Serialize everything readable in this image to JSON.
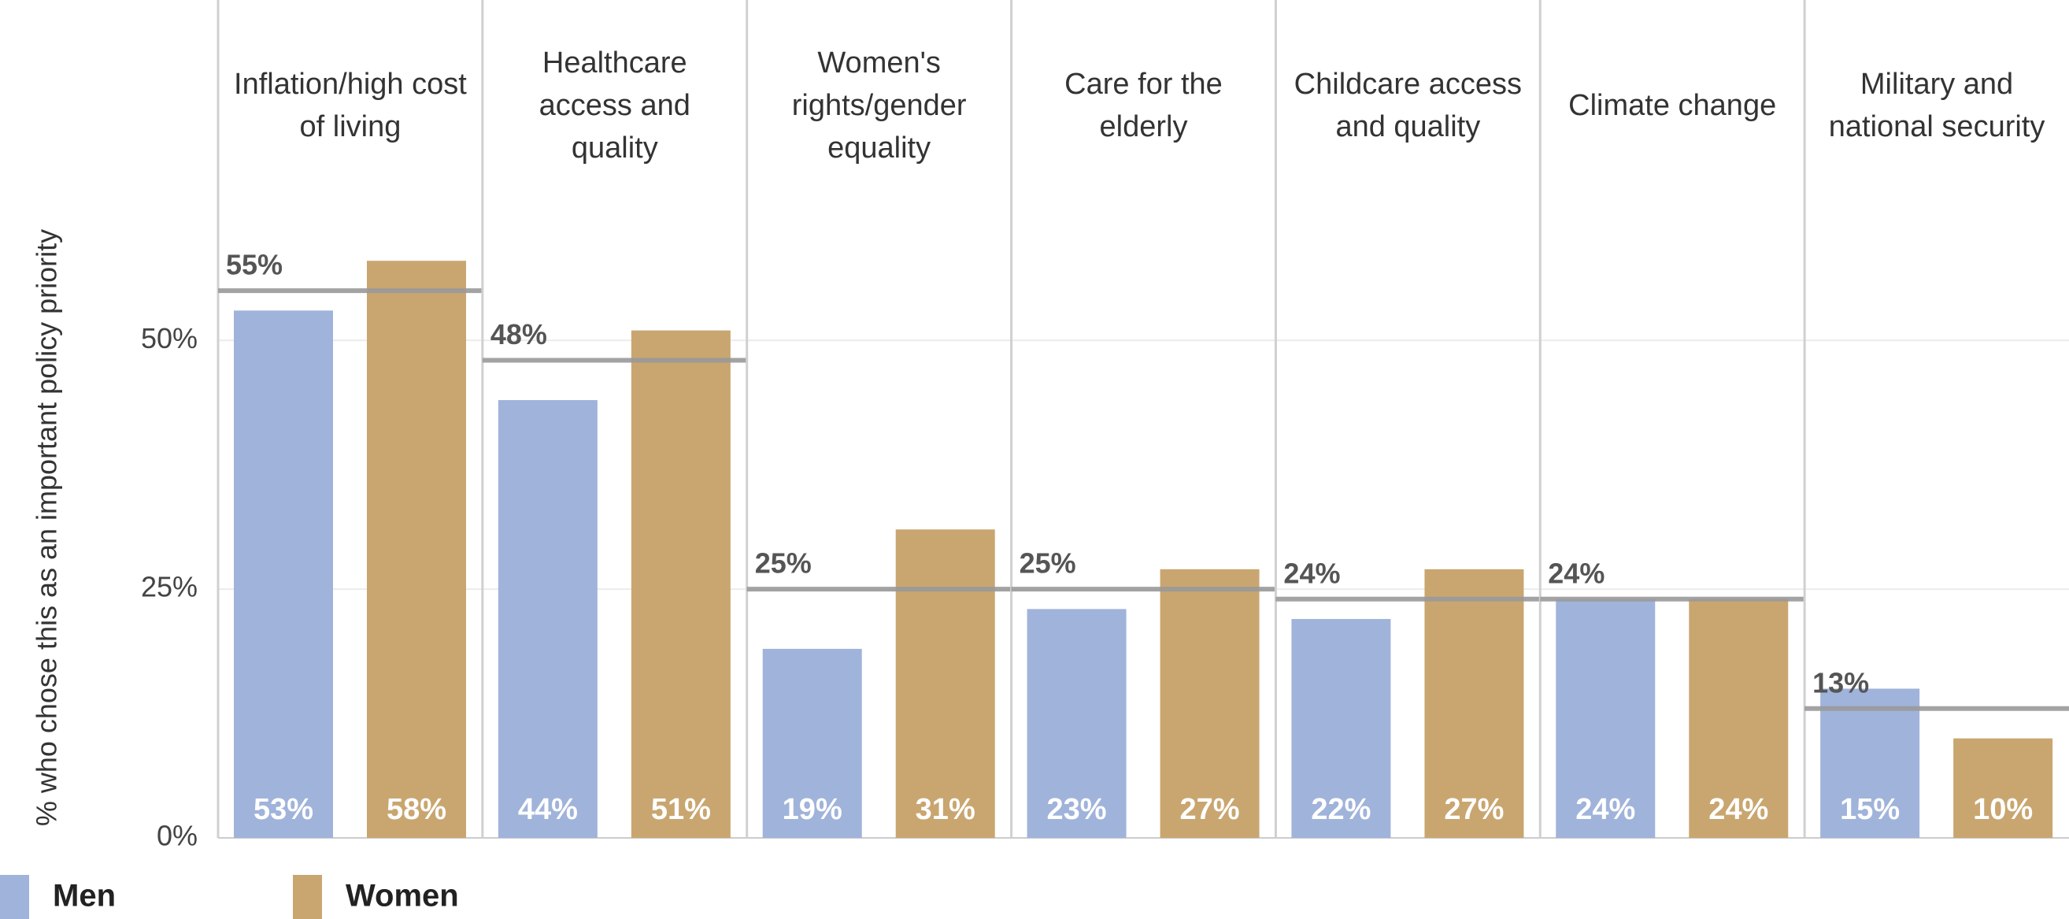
{
  "chart_data": {
    "type": "bar",
    "categories": [
      "Inflation/high cost of living",
      "Healthcare access and quality",
      "Women's rights/gender equality",
      "Care for the elderly",
      "Childcare access and quality",
      "Climate change",
      "Military and national security"
    ],
    "series": [
      {
        "name": "Men",
        "color": "#a0b3da",
        "values": [
          53,
          44,
          19,
          23,
          22,
          24,
          15
        ],
        "value_labels": [
          "53%",
          "44%",
          "19%",
          "23%",
          "22%",
          "24%",
          "15%"
        ]
      },
      {
        "name": "Women",
        "color": "#c9a670",
        "values": [
          58,
          51,
          31,
          27,
          27,
          24,
          10
        ],
        "value_labels": [
          "58%",
          "51%",
          "31%",
          "27%",
          "27%",
          "24%",
          "10%"
        ]
      }
    ],
    "overall": {
      "color": "#999999",
      "values": [
        55,
        48,
        25,
        25,
        24,
        24,
        13
      ],
      "value_labels": [
        "55%",
        "48%",
        "25%",
        "25%",
        "24%",
        "24%",
        "13%"
      ]
    },
    "ylabel": "% who chose this as an important policy priority",
    "ylim": [
      0,
      63
    ],
    "yticks": [
      {
        "value": 0,
        "label": "0%"
      },
      {
        "value": 25,
        "label": "25%"
      },
      {
        "value": 50,
        "label": "50%"
      }
    ],
    "grid": true
  }
}
